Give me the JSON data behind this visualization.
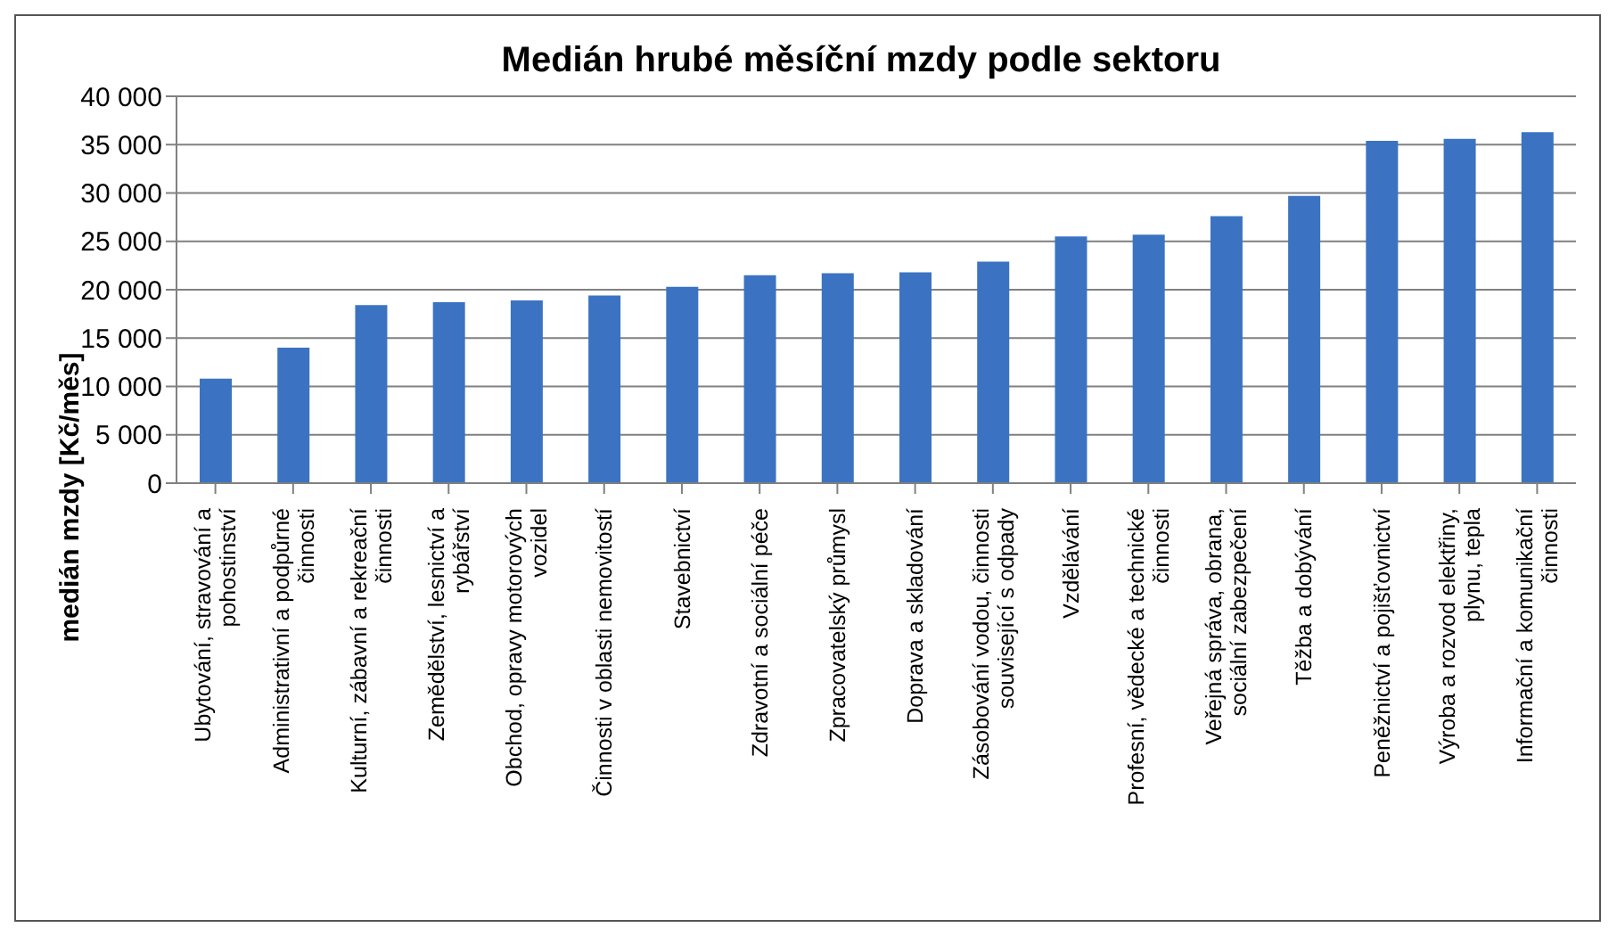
{
  "chart_data": {
    "type": "bar",
    "title": "Medián hrubé měsíční mzdy podle sektoru",
    "ylabel": "medián mzdy [Kč/měs]",
    "categories": [
      "Ubytování, stravování a pohostinství",
      "Administrativní a podpůrné činnosti",
      "Kulturní, zábavní a rekreační činnosti",
      "Zemědělství, lesnictví a rybářství",
      "Obchod, opravy motorových vozidel",
      "Činnosti v oblasti nemovitostí",
      "Stavebnictví",
      "Zdravotní a sociální péče",
      "Zpracovatelský průmysl",
      "Doprava a skladování",
      "Zásobování vodou, činnosti související s odpady",
      "Vzdělávání",
      "Profesní, vědecké a technické činnosti",
      "Veřejná správa, obrana, sociální zabezpečení",
      "Těžba a dobývání",
      "Peněžnictví a pojišťovnictví",
      "Výroba a rozvod elektřiny, plynu, tepla",
      "Informační a komunikační činnosti"
    ],
    "values": [
      10800,
      14000,
      18400,
      18700,
      18900,
      19400,
      20300,
      21500,
      21700,
      21800,
      22900,
      25500,
      25700,
      27600,
      29700,
      35400,
      35600,
      36300
    ],
    "color": "#3b73c2",
    "ylim": [
      0,
      40000
    ],
    "yticks": [
      0,
      {
        "value": 5000,
        "label": "5 000"
      },
      {
        "value": 10000,
        "label": "10 000"
      },
      {
        "value": 15000,
        "label": "15 000"
      },
      {
        "value": 20000,
        "label": "20 000"
      },
      {
        "value": 25000,
        "label": "25 000"
      },
      {
        "value": 30000,
        "label": "30 000"
      },
      {
        "value": 35000,
        "label": "35 000"
      },
      {
        "value": 40000,
        "label": "40 000"
      }
    ],
    "grid": "y",
    "legend": false
  }
}
